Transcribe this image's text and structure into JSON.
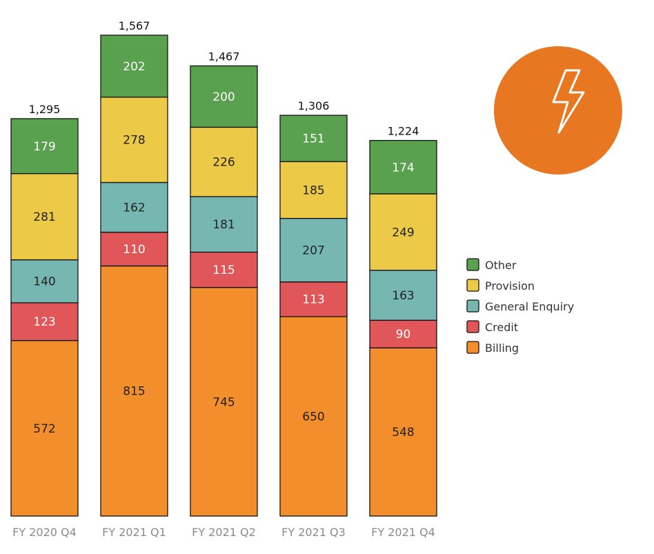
{
  "chart_data": {
    "type": "bar",
    "stacked": true,
    "categories": [
      "FY 2020 Q4",
      "FY 2021 Q1",
      "FY 2021 Q2",
      "FY 2021 Q3",
      "FY 2021 Q4"
    ],
    "totals": [
      "1,295",
      "1,567",
      "1,467",
      "1,306",
      "1,224"
    ],
    "series": [
      {
        "name": "Billing",
        "color": "#f28e2b",
        "label_color": "#222222",
        "values": [
          572,
          815,
          745,
          650,
          548
        ]
      },
      {
        "name": "Credit",
        "color": "#e15759",
        "label_color": "#ffffff",
        "values": [
          123,
          110,
          115,
          113,
          90
        ]
      },
      {
        "name": "General Enquiry",
        "color": "#76b7b2",
        "label_color": "#222222",
        "values": [
          140,
          162,
          181,
          207,
          163
        ]
      },
      {
        "name": "Provision",
        "color": "#edc948",
        "label_color": "#222222",
        "values": [
          281,
          278,
          226,
          185,
          249
        ]
      },
      {
        "name": "Other",
        "color": "#59a14f",
        "label_color": "#ffffff",
        "values": [
          179,
          202,
          200,
          151,
          174
        ]
      }
    ],
    "legend_order": [
      "Other",
      "Provision",
      "General Enquiry",
      "Credit",
      "Billing"
    ],
    "legend_position": "right",
    "grid": false,
    "ylim": [
      0,
      1567
    ],
    "title": "",
    "xlabel": "",
    "ylabel": ""
  },
  "badge": {
    "icon": "lightning-bolt-icon",
    "color": "#e87722"
  }
}
